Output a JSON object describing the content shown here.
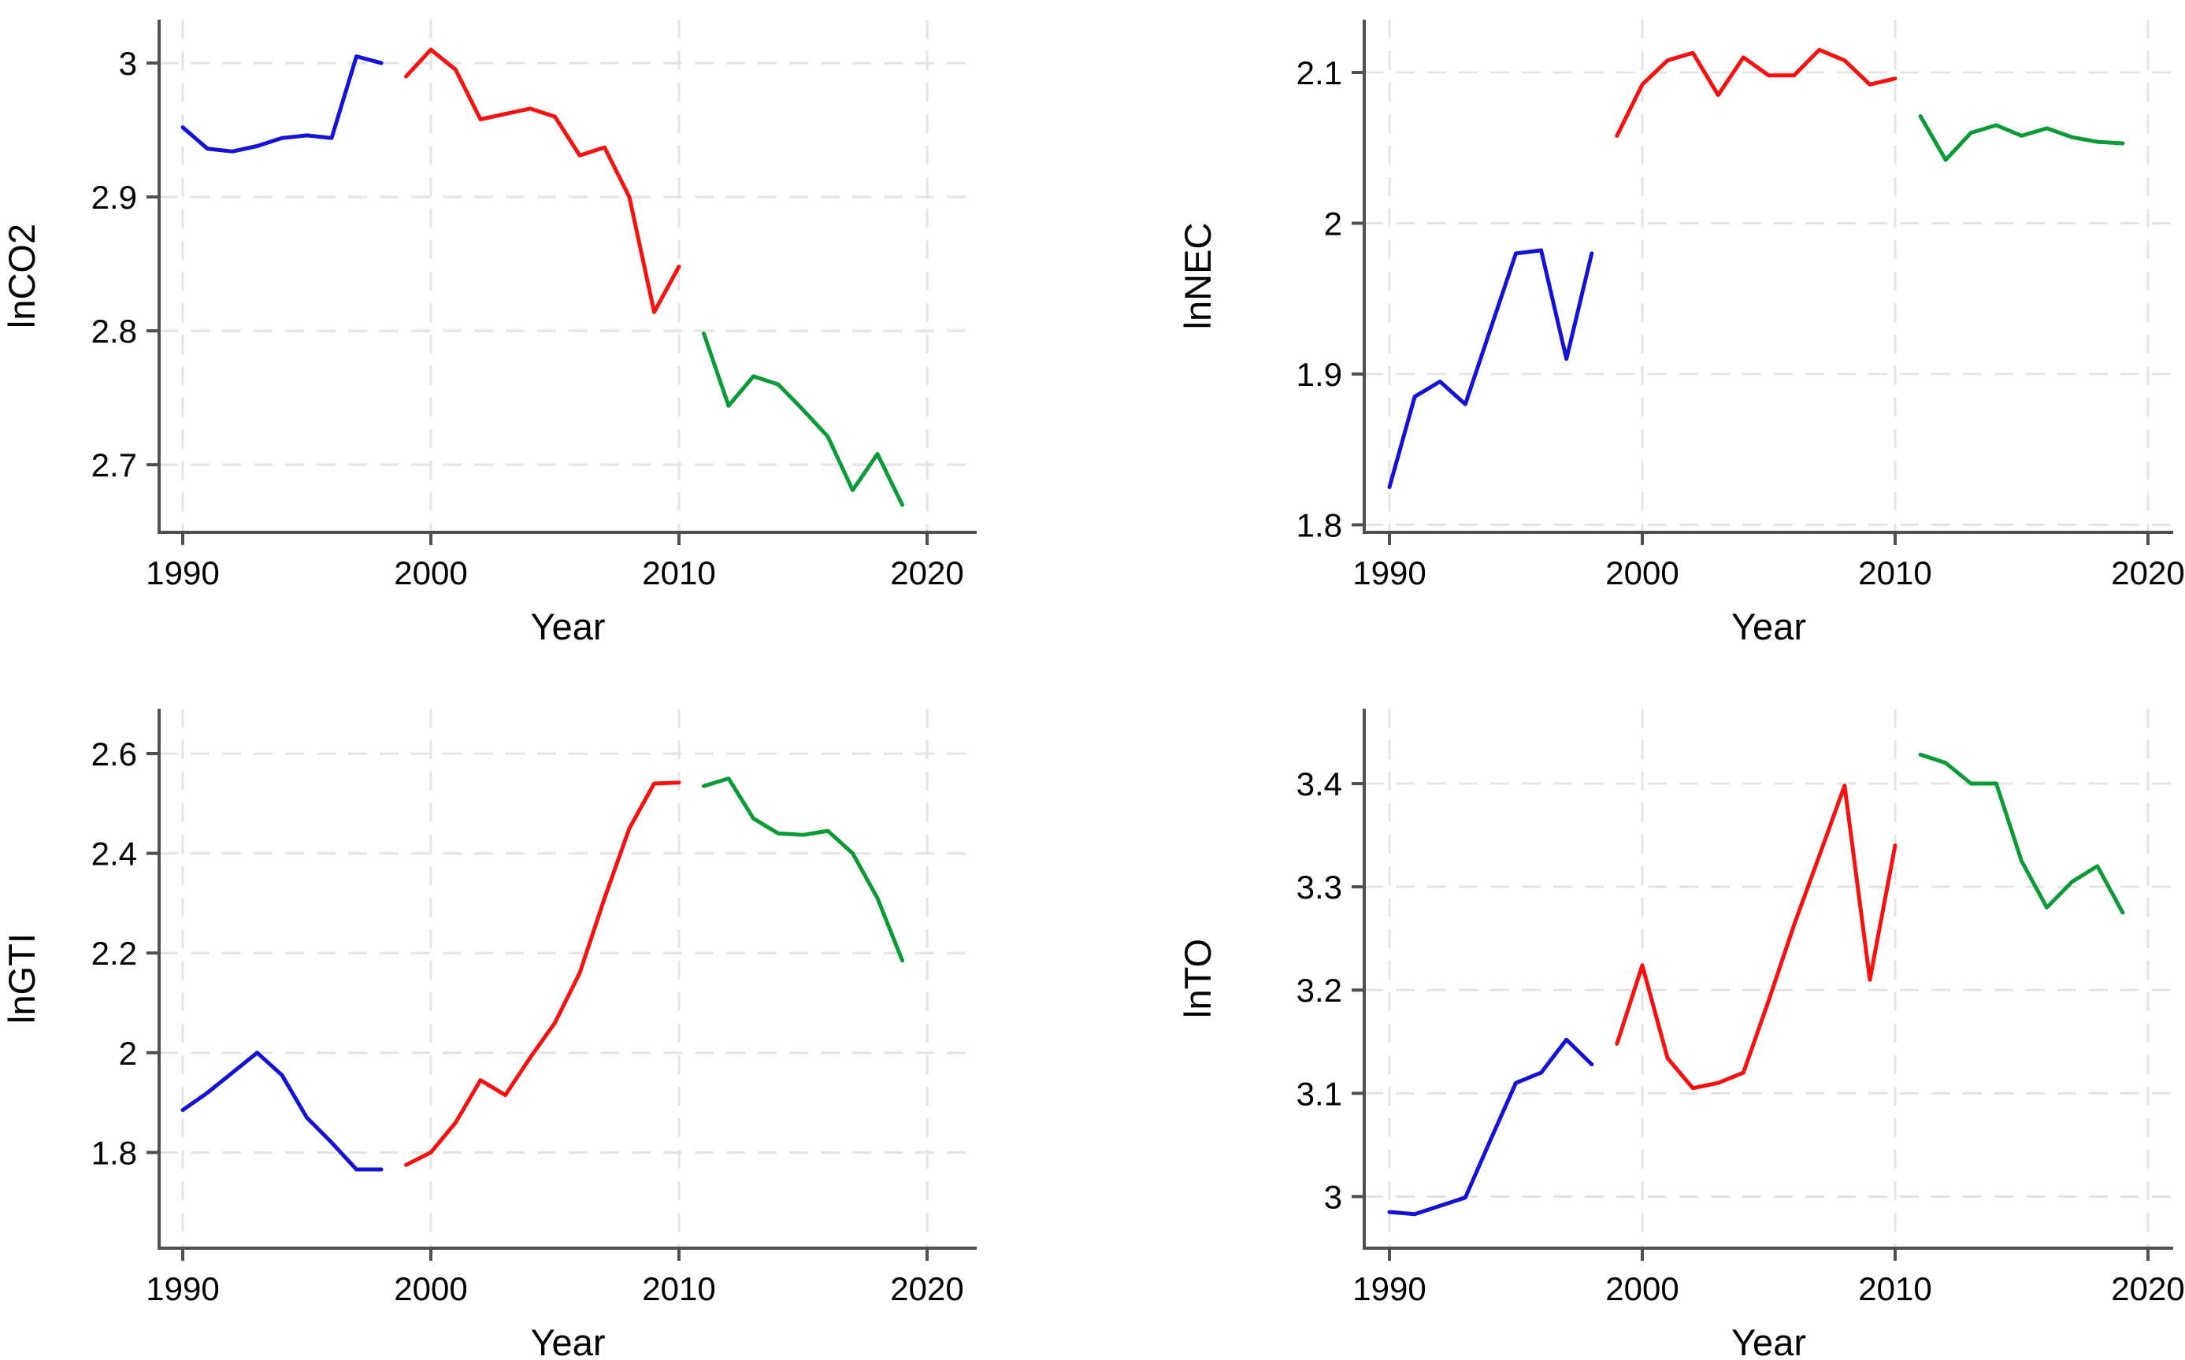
{
  "figure": {
    "background": "#ffffff",
    "description": "2x2 grid of time-series line charts, each split into three colored period segments"
  },
  "style": {
    "axis_color": "#4f4f4f",
    "tick_color": "#4f4f4f",
    "grid_color": "#e4e4e4",
    "label_color": "#000000",
    "series_colors": {
      "period1": "#1212d8",
      "period2": "#fa0f0f",
      "period3": "#0a9b37"
    }
  },
  "chart_data": [
    {
      "type": "line",
      "title": "",
      "ylabel": "lnCO2",
      "xlabel": "Year",
      "grid": true,
      "legend": "none",
      "x_ticks": [
        1990,
        2000,
        2010,
        2020
      ],
      "x_tick_labels": [
        "1990",
        "2000",
        "2010",
        "2020"
      ],
      "y_ticks": [
        2.7,
        2.8,
        2.9,
        3.0
      ],
      "y_tick_labels": [
        "2.7",
        "2.8",
        "2.9",
        "3"
      ],
      "ylim": [
        2.6495,
        3.0324
      ],
      "xlim": [
        1989,
        2022
      ],
      "layout": {
        "col": "left",
        "row": "top"
      },
      "series": [
        {
          "name": "1990-1998",
          "color_key": "period1",
          "start_year": 1990,
          "values": [
            2.952,
            2.936,
            2.934,
            2.938,
            2.944,
            2.946,
            2.944,
            3.005,
            3.0
          ]
        },
        {
          "name": "1999-2010",
          "color_key": "period2",
          "start_year": 1999,
          "values": [
            2.99,
            3.01,
            2.995,
            2.958,
            2.962,
            2.966,
            2.96,
            2.931,
            2.937,
            2.9,
            2.814,
            2.848
          ]
        },
        {
          "name": "2011-2019",
          "color_key": "period3",
          "start_year": 2011,
          "values": [
            2.798,
            2.744,
            2.766,
            2.76,
            2.741,
            2.721,
            2.681,
            2.708,
            2.67
          ]
        }
      ]
    },
    {
      "type": "line",
      "title": "",
      "ylabel": "lnNEC",
      "xlabel": "Year",
      "grid": true,
      "legend": "none",
      "x_ticks": [
        1990,
        2000,
        2010,
        2020
      ],
      "x_tick_labels": [
        "1990",
        "2000",
        "2010",
        "2020"
      ],
      "y_ticks": [
        1.8,
        1.9,
        2.0,
        2.1
      ],
      "y_tick_labels": [
        "1.8",
        "1.9",
        "2",
        "2.1"
      ],
      "ylim": [
        1.795,
        2.135
      ],
      "xlim": [
        1989,
        2022
      ],
      "layout": {
        "col": "right",
        "row": "top"
      },
      "series": [
        {
          "name": "1990-1998",
          "color_key": "period1",
          "start_year": 1990,
          "values": [
            1.825,
            1.885,
            1.895,
            1.88,
            1.93,
            1.98,
            1.982,
            1.91,
            1.98
          ]
        },
        {
          "name": "1999-2010",
          "color_key": "period2",
          "start_year": 1999,
          "values": [
            2.058,
            2.092,
            2.108,
            2.113,
            2.085,
            2.11,
            2.098,
            2.098,
            2.115,
            2.108,
            2.092,
            2.096
          ]
        },
        {
          "name": "2011-2019",
          "color_key": "period3",
          "start_year": 2011,
          "values": [
            2.071,
            2.042,
            2.06,
            2.065,
            2.058,
            2.063,
            2.057,
            2.054,
            2.053
          ]
        }
      ]
    },
    {
      "type": "line",
      "title": "",
      "ylabel": "lnGTI",
      "xlabel": "Year",
      "grid": true,
      "legend": "none",
      "x_ticks": [
        1990,
        2000,
        2010,
        2020
      ],
      "x_tick_labels": [
        "1990",
        "2000",
        "2010",
        "2020"
      ],
      "y_ticks": [
        1.8,
        2.0,
        2.2,
        2.4,
        2.6
      ],
      "y_tick_labels": [
        "1.8",
        "2",
        "2.2",
        "2.4",
        "2.6"
      ],
      "ylim": [
        1.608,
        2.69
      ],
      "xlim": [
        1989,
        2022
      ],
      "layout": {
        "col": "left",
        "row": "bottom"
      },
      "series": [
        {
          "name": "1990-1998",
          "color_key": "period1",
          "start_year": 1990,
          "values": [
            1.885,
            1.92,
            1.96,
            2.0,
            1.955,
            1.87,
            1.82,
            1.766,
            1.766
          ]
        },
        {
          "name": "1999-2010",
          "color_key": "period2",
          "start_year": 1999,
          "values": [
            1.775,
            1.8,
            1.86,
            1.945,
            1.915,
            1.99,
            2.06,
            2.16,
            2.31,
            2.45,
            2.54,
            2.542
          ]
        },
        {
          "name": "2011-2019",
          "color_key": "period3",
          "start_year": 2011,
          "values": [
            2.535,
            2.55,
            2.47,
            2.44,
            2.437,
            2.445,
            2.4,
            2.31,
            2.185
          ]
        }
      ]
    },
    {
      "type": "line",
      "title": "",
      "ylabel": "lnTO",
      "xlabel": "Year",
      "grid": true,
      "legend": "none",
      "x_ticks": [
        1990,
        2000,
        2010,
        2020
      ],
      "x_tick_labels": [
        "1990",
        "2000",
        "2010",
        "2020"
      ],
      "y_ticks": [
        3.0,
        3.1,
        3.2,
        3.3,
        3.4
      ],
      "y_tick_labels": [
        "3",
        "3.1",
        "3.2",
        "3.3",
        "3.4"
      ],
      "ylim": [
        2.95,
        3.4725
      ],
      "xlim": [
        1989,
        2022
      ],
      "layout": {
        "col": "right",
        "row": "bottom"
      },
      "series": [
        {
          "name": "1990-1998",
          "color_key": "period1",
          "start_year": 1990,
          "values": [
            2.985,
            2.983,
            2.991,
            2.999,
            3.055,
            3.11,
            3.12,
            3.152,
            3.128
          ]
        },
        {
          "name": "1999-2010",
          "color_key": "period2",
          "start_year": 1999,
          "values": [
            3.148,
            3.224,
            3.134,
            3.105,
            3.11,
            3.12,
            3.19,
            3.263,
            3.33,
            3.398,
            3.21,
            3.34
          ]
        },
        {
          "name": "2011-2019",
          "color_key": "period3",
          "start_year": 2011,
          "values": [
            3.428,
            3.42,
            3.4,
            3.4,
            3.325,
            3.28,
            3.305,
            3.32,
            3.275
          ]
        }
      ]
    }
  ]
}
